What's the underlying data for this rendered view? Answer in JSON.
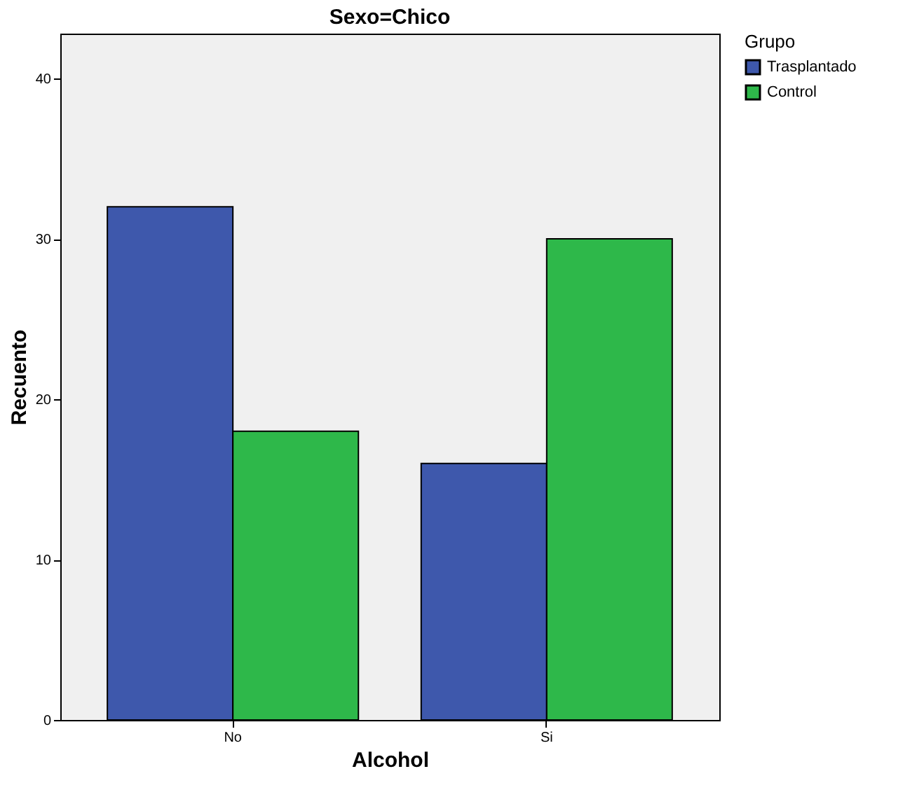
{
  "chart_data": {
    "type": "bar",
    "title": "Sexo=Chico",
    "xlabel": "Alcohol",
    "ylabel": "Recuento",
    "legend_title": "Grupo",
    "categories": [
      "No",
      "Si"
    ],
    "series": [
      {
        "name": "Trasplantado",
        "color": "#3e58ac",
        "values": [
          32,
          16
        ]
      },
      {
        "name": "Control",
        "color": "#2eb84a",
        "values": [
          18,
          30
        ]
      }
    ],
    "ylim": [
      0,
      42.8
    ],
    "yticks": [
      0,
      10,
      20,
      30,
      40
    ],
    "grid": false,
    "legend": "right"
  }
}
